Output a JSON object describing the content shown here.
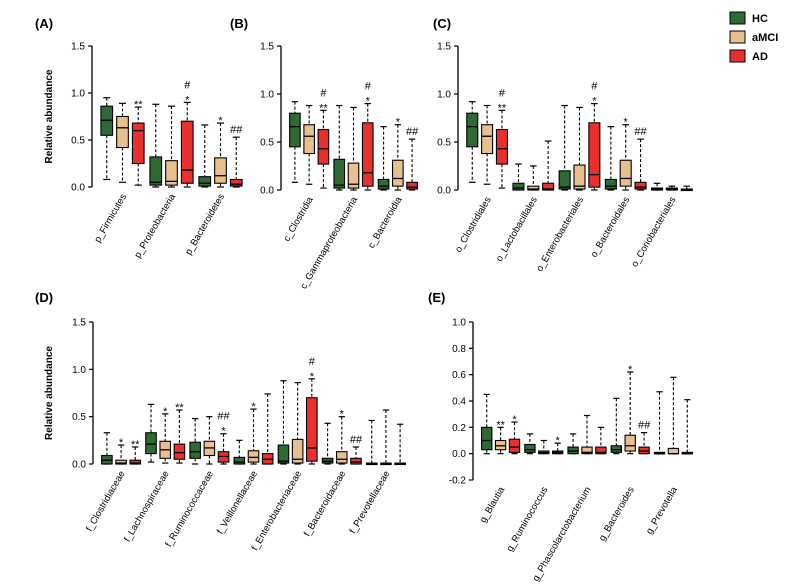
{
  "chart_data": {
    "type": "box",
    "legend": {
      "position": "top-right",
      "entries": [
        {
          "name": "HC",
          "color": "#2e6b34"
        },
        {
          "name": "aMCI",
          "color": "#e8bf8e"
        },
        {
          "name": "AD",
          "color": "#e8302f"
        }
      ]
    },
    "panels": [
      {
        "letter": "(A)",
        "ylabel": "Relative abundance",
        "ylim": [
          0,
          1.5
        ],
        "yticks": [
          "0.0",
          "0.5",
          "1.0",
          "1.5"
        ],
        "categories": [
          {
            "label": "p_Firmicutes",
            "boxes": [
              [
                0.08,
                0.55,
                0.71,
                0.86,
                0.95
              ],
              [
                0.05,
                0.42,
                0.63,
                0.75,
                0.89
              ],
              [
                0.02,
                0.25,
                0.6,
                0.68,
                0.85
              ]
            ],
            "marks": [
              "",
              "",
              "**"
            ]
          },
          {
            "label": "p_Proteobacteria",
            "boxes": [
              [
                0.0,
                0.02,
                0.05,
                0.32,
                0.88
              ],
              [
                0.0,
                0.02,
                0.06,
                0.28,
                0.86
              ],
              [
                0.0,
                0.04,
                0.18,
                0.7,
                0.9
              ]
            ],
            "marks": [
              "",
              "",
              "*|#"
            ]
          },
          {
            "label": "p_Bacteroidetes",
            "boxes": [
              [
                0.0,
                0.01,
                0.04,
                0.11,
                0.66
              ],
              [
                0.0,
                0.04,
                0.12,
                0.31,
                0.68
              ],
              [
                0.0,
                0.01,
                0.03,
                0.08,
                0.53
              ]
            ],
            "marks": [
              "",
              "*",
              "##"
            ]
          }
        ]
      },
      {
        "letter": "(B)",
        "ylabel": "",
        "ylim": [
          0,
          1.5
        ],
        "yticks": [
          "0.0",
          "0.5",
          "1.0",
          "1.5"
        ],
        "categories": [
          {
            "label": "c_Clostridia",
            "boxes": [
              [
                0.08,
                0.45,
                0.66,
                0.8,
                0.92
              ],
              [
                0.06,
                0.38,
                0.56,
                0.68,
                0.88
              ],
              [
                0.02,
                0.27,
                0.43,
                0.63,
                0.83
              ]
            ],
            "marks": [
              "",
              "",
              "**|#"
            ]
          },
          {
            "label": "c_Gammaproteobacteria",
            "boxes": [
              [
                0.0,
                0.02,
                0.05,
                0.32,
                0.88
              ],
              [
                0.0,
                0.02,
                0.06,
                0.28,
                0.86
              ],
              [
                0.0,
                0.04,
                0.18,
                0.7,
                0.9
              ]
            ],
            "marks": [
              "",
              "",
              "*|#"
            ]
          },
          {
            "label": "c_Bacteroidia",
            "boxes": [
              [
                0.0,
                0.01,
                0.04,
                0.11,
                0.66
              ],
              [
                0.0,
                0.04,
                0.12,
                0.31,
                0.68
              ],
              [
                0.0,
                0.01,
                0.03,
                0.08,
                0.53
              ]
            ],
            "marks": [
              "",
              "*",
              "##"
            ]
          }
        ]
      },
      {
        "letter": "(C)",
        "ylabel": "",
        "ylim": [
          0,
          1.5
        ],
        "yticks": [
          "0.0",
          "0.5",
          "1.0",
          "1.5"
        ],
        "categories": [
          {
            "label": "o_Clostridiales",
            "boxes": [
              [
                0.08,
                0.45,
                0.66,
                0.8,
                0.92
              ],
              [
                0.06,
                0.38,
                0.56,
                0.68,
                0.88
              ],
              [
                0.02,
                0.27,
                0.43,
                0.63,
                0.83
              ]
            ],
            "marks": [
              "",
              "",
              "**|#"
            ]
          },
          {
            "label": "o_Lactobacillales",
            "boxes": [
              [
                0.0,
                0.0,
                0.02,
                0.07,
                0.27
              ],
              [
                0.0,
                0.0,
                0.01,
                0.04,
                0.25
              ],
              [
                0.0,
                0.0,
                0.01,
                0.07,
                0.51
              ]
            ],
            "marks": [
              "",
              "",
              ""
            ]
          },
          {
            "label": "o_Enterobacteriales",
            "boxes": [
              [
                0.0,
                0.01,
                0.03,
                0.2,
                0.88
              ],
              [
                0.0,
                0.01,
                0.04,
                0.26,
                0.86
              ],
              [
                0.0,
                0.03,
                0.16,
                0.7,
                0.9
              ]
            ],
            "marks": [
              "",
              "",
              "*|#"
            ]
          },
          {
            "label": "o_Bacteroidales",
            "boxes": [
              [
                0.0,
                0.01,
                0.04,
                0.11,
                0.66
              ],
              [
                0.0,
                0.04,
                0.12,
                0.31,
                0.68
              ],
              [
                0.0,
                0.01,
                0.03,
                0.08,
                0.53
              ]
            ],
            "marks": [
              "",
              "*",
              "##"
            ]
          },
          {
            "label": "o_Coriobacteriales",
            "boxes": [
              [
                0.0,
                0.0,
                0.01,
                0.02,
                0.07
              ],
              [
                0.0,
                0.0,
                0.01,
                0.02,
                0.04
              ],
              [
                0.0,
                0.0,
                0.0,
                0.01,
                0.04
              ]
            ],
            "marks": [
              "",
              "",
              ""
            ]
          }
        ]
      },
      {
        "letter": "(D)",
        "ylabel": "Relative abundance",
        "ylim": [
          0,
          1.5
        ],
        "yticks": [
          "0.0",
          "0.5",
          "1.0",
          "1.5"
        ],
        "categories": [
          {
            "label": "f_Clostridiaceae",
            "boxes": [
              [
                0.0,
                0.0,
                0.04,
                0.09,
                0.33
              ],
              [
                0.0,
                0.0,
                0.01,
                0.04,
                0.2
              ],
              [
                0.0,
                0.0,
                0.01,
                0.04,
                0.18
              ]
            ],
            "marks": [
              "",
              "*",
              "**"
            ]
          },
          {
            "label": "f_Lachnospiraceae",
            "boxes": [
              [
                0.02,
                0.11,
                0.21,
                0.33,
                0.63
              ],
              [
                0.01,
                0.06,
                0.15,
                0.24,
                0.53
              ],
              [
                0.01,
                0.05,
                0.12,
                0.21,
                0.57
              ]
            ],
            "marks": [
              "",
              "*",
              "**"
            ]
          },
          {
            "label": "f_Ruminococcaceae",
            "boxes": [
              [
                0.0,
                0.06,
                0.13,
                0.23,
                0.48
              ],
              [
                0.0,
                0.09,
                0.17,
                0.24,
                0.5
              ],
              [
                0.0,
                0.02,
                0.08,
                0.13,
                0.32
              ]
            ],
            "marks": [
              "",
              "",
              "*|##"
            ]
          },
          {
            "label": "f_Veillonellaceae",
            "boxes": [
              [
                0.0,
                0.0,
                0.02,
                0.07,
                0.25
              ],
              [
                0.0,
                0.02,
                0.07,
                0.14,
                0.58
              ],
              [
                0.0,
                0.0,
                0.05,
                0.11,
                0.74
              ]
            ],
            "marks": [
              "",
              "*",
              ""
            ]
          },
          {
            "label": "f_Enterobacteriaceae",
            "boxes": [
              [
                0.0,
                0.01,
                0.03,
                0.2,
                0.88
              ],
              [
                0.0,
                0.01,
                0.05,
                0.26,
                0.86
              ],
              [
                0.0,
                0.03,
                0.17,
                0.7,
                0.9
              ]
            ],
            "marks": [
              "",
              "",
              "*|#"
            ]
          },
          {
            "label": "f_Bacteroidaceae",
            "boxes": [
              [
                0.0,
                0.01,
                0.03,
                0.06,
                0.43
              ],
              [
                0.0,
                0.01,
                0.05,
                0.13,
                0.5
              ],
              [
                0.0,
                0.0,
                0.02,
                0.06,
                0.18
              ]
            ],
            "marks": [
              "",
              "*",
              "##"
            ]
          },
          {
            "label": "f_Prevotellaceae",
            "boxes": [
              [
                0.0,
                0.0,
                0.0,
                0.01,
                0.46
              ],
              [
                0.0,
                0.0,
                0.0,
                0.01,
                0.57
              ],
              [
                0.0,
                0.0,
                0.0,
                0.01,
                0.42
              ]
            ],
            "marks": [
              "",
              "",
              ""
            ]
          }
        ]
      },
      {
        "letter": "(E)",
        "ylabel": "",
        "ylim": [
          -0.2,
          1.0
        ],
        "yticks": [
          "-0.2",
          "0.0",
          "0.2",
          "0.4",
          "0.6",
          "0.8",
          "1.0"
        ],
        "categories": [
          {
            "label": "g_Blautia",
            "boxes": [
              [
                0.0,
                0.03,
                0.1,
                0.2,
                0.45
              ],
              [
                0.0,
                0.03,
                0.06,
                0.1,
                0.2
              ],
              [
                0.0,
                0.01,
                0.05,
                0.11,
                0.24
              ]
            ],
            "marks": [
              "",
              "**",
              "*"
            ]
          },
          {
            "label": "g_Ruminococcus",
            "boxes": [
              [
                0.0,
                0.01,
                0.03,
                0.07,
                0.15
              ],
              [
                0.0,
                0.0,
                0.01,
                0.02,
                0.1
              ],
              [
                0.0,
                0.0,
                0.01,
                0.02,
                0.08
              ]
            ],
            "marks": [
              "",
              "",
              "*"
            ]
          },
          {
            "label": "g_Phascolarctobacterium",
            "boxes": [
              [
                0.0,
                0.0,
                0.02,
                0.05,
                0.15
              ],
              [
                0.0,
                0.0,
                0.01,
                0.05,
                0.29
              ],
              [
                0.0,
                0.0,
                0.01,
                0.05,
                0.2
              ]
            ],
            "marks": [
              "",
              "",
              ""
            ]
          },
          {
            "label": "g_Bacteroides",
            "boxes": [
              [
                0.0,
                0.01,
                0.03,
                0.06,
                0.42
              ],
              [
                0.0,
                0.02,
                0.06,
                0.14,
                0.62
              ],
              [
                0.0,
                0.0,
                0.02,
                0.05,
                0.16
              ]
            ],
            "marks": [
              "",
              "*",
              "##"
            ]
          },
          {
            "label": "g_Prevotella",
            "boxes": [
              [
                0.0,
                0.0,
                0.0,
                0.01,
                0.47
              ],
              [
                0.0,
                0.0,
                0.0,
                0.04,
                0.58
              ],
              [
                0.0,
                0.0,
                0.0,
                0.01,
                0.41
              ]
            ],
            "marks": [
              "",
              "",
              ""
            ]
          }
        ]
      }
    ]
  }
}
